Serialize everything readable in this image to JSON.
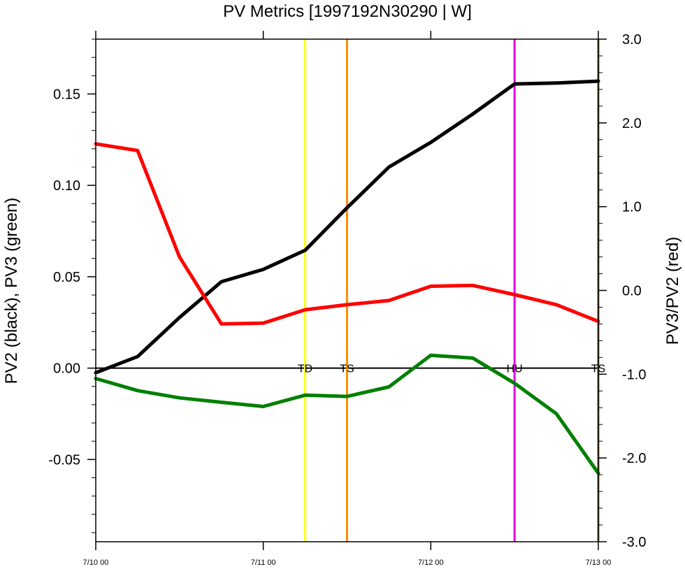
{
  "chart_data": {
    "type": "line",
    "title": "PV Metrics [1997192N30290 | W]",
    "y_left_label": "PV2 (black), PV3 (green)",
    "y_right_label": "PV3/PV2 (red)",
    "x_tick_labels": [
      "7/10 00",
      "7/11 00",
      "7/12 00",
      "7/13 00"
    ],
    "x_tick_values": [
      0,
      24,
      48,
      72
    ],
    "x_range": [
      0,
      72
    ],
    "y_left_range": [
      -0.095,
      0.18
    ],
    "y_left_ticks": [
      -0.05,
      0.0,
      0.05,
      0.1,
      0.15
    ],
    "y_left_tick_labels": [
      "-0.05",
      "0.00",
      "0.05",
      "0.10",
      "0.15"
    ],
    "y_right_range": [
      -3.0,
      3.0
    ],
    "y_right_ticks": [
      -3.0,
      -2.0,
      -1.0,
      0.0,
      1.0,
      2.0,
      3.0
    ],
    "y_right_tick_labels": [
      "-3.0",
      "-2.0",
      "-1.0",
      "0.0",
      "1.0",
      "2.0",
      "3.0"
    ],
    "zero_line_left": 0.0,
    "series": [
      {
        "key": "pv2",
        "color": "#000000",
        "axis": "left",
        "x": [
          0,
          6,
          12,
          18,
          24,
          30,
          36,
          42,
          48,
          54,
          60,
          66,
          72
        ],
        "values": [
          -0.0025,
          0.0063,
          0.0277,
          0.0473,
          0.054,
          0.0645,
          0.0877,
          0.11,
          0.1235,
          0.139,
          0.1555,
          0.156,
          0.157
        ]
      },
      {
        "key": "pv3",
        "color": "#008000",
        "axis": "left",
        "x": [
          0,
          6,
          12,
          18,
          24,
          30,
          36,
          42,
          48,
          54,
          60,
          66,
          72
        ],
        "values": [
          -0.0057,
          -0.0123,
          -0.0163,
          -0.0187,
          -0.021,
          -0.0148,
          -0.0155,
          -0.0103,
          0.007,
          0.0055,
          -0.0083,
          -0.025,
          -0.0575
        ]
      },
      {
        "key": "ratio",
        "color": "#ff0000",
        "axis": "right",
        "x": [
          0,
          6,
          12,
          18,
          24,
          30,
          36,
          42,
          48,
          54,
          60,
          66,
          72
        ],
        "values": [
          1.75,
          1.67,
          0.4,
          -0.4,
          -0.39,
          -0.23,
          -0.17,
          -0.12,
          0.05,
          0.06,
          -0.05,
          -0.17,
          -0.37
        ]
      }
    ],
    "events": [
      {
        "label": "TD",
        "x": 30,
        "color": "#ffff00"
      },
      {
        "label": "TS",
        "x": 36,
        "color": "#ff8c00"
      },
      {
        "label": "HU",
        "x": 60,
        "color": "#e000e0"
      },
      {
        "label": "TS",
        "x": 72,
        "color": "#8b6914"
      }
    ],
    "grid": false,
    "legend": "none"
  }
}
